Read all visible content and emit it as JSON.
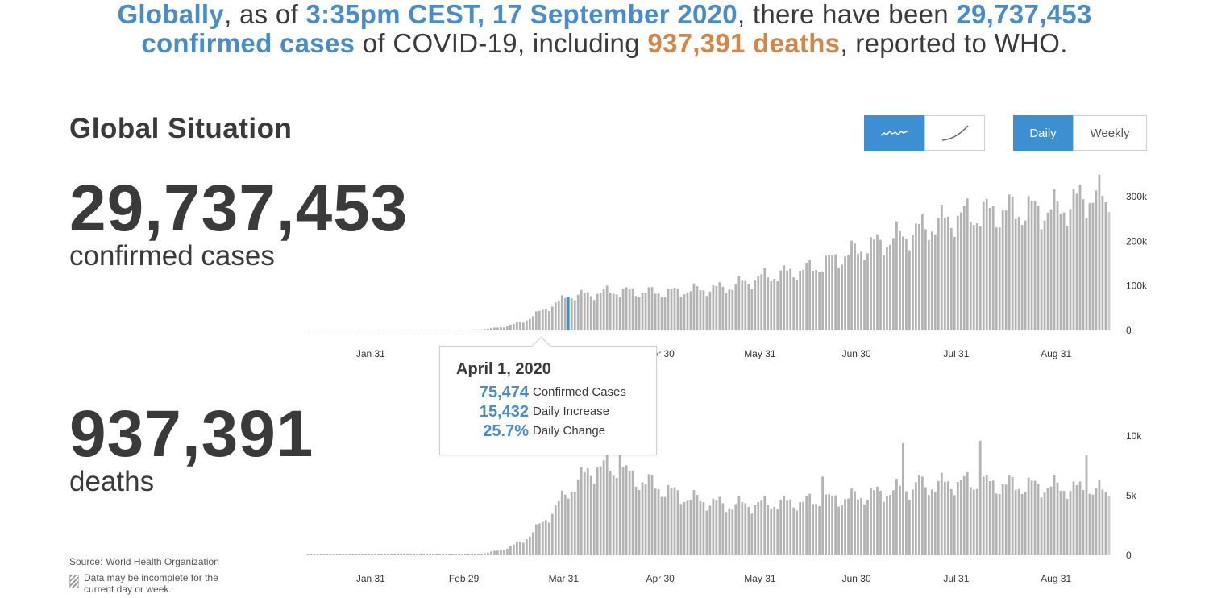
{
  "headline": {
    "globally": "Globally",
    "t1": ", as of ",
    "date": "3:35pm CEST, 17 September 2020",
    "t2": ", there have been ",
    "cases": "29,737,453 confirmed cases",
    "t3": " of COVID-19, including ",
    "deaths": "937,391 deaths",
    "t4": ", reported to WHO."
  },
  "section_title": "Global Situation",
  "controls": {
    "chart_type": {
      "options": [
        "daily-trend-icon",
        "cumulative-curve-icon"
      ],
      "active": "daily-trend-icon"
    },
    "period": {
      "daily": "Daily",
      "weekly": "Weekly",
      "active": "Daily"
    }
  },
  "stats": {
    "cases": {
      "value": "29,737,453",
      "label": "confirmed cases"
    },
    "deaths": {
      "value": "937,391",
      "label": "deaths"
    }
  },
  "tooltip": {
    "date": "April 1, 2020",
    "rows": [
      {
        "value": "75,474",
        "label": "Confirmed Cases"
      },
      {
        "value": "15,432",
        "label": "Daily Increase"
      },
      {
        "value": "25.7%",
        "label": "Daily Change"
      }
    ]
  },
  "source": {
    "label": "Source:",
    "name": "World Health Organization"
  },
  "disclaimer": "Data may be incomplete for the current day or week.",
  "colors": {
    "bar": "#b3b3b3",
    "highlight": "#3d8fd1",
    "accent_blue": "#4a8dc6",
    "accent_orange": "#d2874a"
  },
  "chart_data": [
    {
      "type": "bar",
      "title": "",
      "series": [
        {
          "values": []
        }
      ],
      "x_start": "2020-01-11",
      "x_end": "2020-09-17",
      "x_ticks": [
        "Jan 31",
        "Feb 29",
        "Mar 31",
        "Apr 30",
        "May 31",
        "Jun 30",
        "Jul 31",
        "Aug 31"
      ],
      "y_ticks": [
        "0",
        "100k",
        "200k",
        "300k"
      ],
      "ylim": [
        0,
        300000
      ],
      "highlight": {
        "date": "2020-04-01",
        "value": 75474
      },
      "anchors": [
        [
          "2020-01-11",
          300
        ],
        [
          "2020-01-29",
          2000
        ],
        [
          "2020-02-12",
          1200
        ],
        [
          "2020-02-25",
          800
        ],
        [
          "2020-03-05",
          2500
        ],
        [
          "2020-03-12",
          8000
        ],
        [
          "2020-03-18",
          20000
        ],
        [
          "2020-03-24",
          45000
        ],
        [
          "2020-04-01",
          75474
        ],
        [
          "2020-04-15",
          88000
        ],
        [
          "2020-04-30",
          85000
        ],
        [
          "2020-05-20",
          96000
        ],
        [
          "2020-06-01",
          120000
        ],
        [
          "2020-06-15",
          138000
        ],
        [
          "2020-06-30",
          180000
        ],
        [
          "2020-07-15",
          215000
        ],
        [
          "2020-07-31",
          255000
        ],
        [
          "2020-08-15",
          268000
        ],
        [
          "2020-08-31",
          270000
        ],
        [
          "2020-09-11",
          305000
        ],
        [
          "2020-09-16",
          285000
        ]
      ]
    },
    {
      "type": "bar",
      "title": "",
      "series": [
        {
          "values": []
        }
      ],
      "x_start": "2020-01-11",
      "x_end": "2020-09-17",
      "x_ticks": [
        "Jan 31",
        "Feb 29",
        "Mar 31",
        "Apr 30",
        "May 31",
        "Jun 30",
        "Jul 31",
        "Aug 31"
      ],
      "y_ticks": [
        "0",
        "5k",
        "10k"
      ],
      "ylim": [
        0,
        10000
      ],
      "anchors": [
        [
          "2020-01-11",
          10
        ],
        [
          "2020-02-12",
          120
        ],
        [
          "2020-02-25",
          60
        ],
        [
          "2020-03-05",
          120
        ],
        [
          "2020-03-12",
          500
        ],
        [
          "2020-03-18",
          1200
        ],
        [
          "2020-03-25",
          3000
        ],
        [
          "2020-04-03",
          6000
        ],
        [
          "2020-04-10",
          7500
        ],
        [
          "2020-04-17",
          7000
        ],
        [
          "2020-04-28",
          5800
        ],
        [
          "2020-05-08",
          4800
        ],
        [
          "2020-05-20",
          4200
        ],
        [
          "2020-06-01",
          4300
        ],
        [
          "2020-06-15",
          4500
        ],
        [
          "2020-06-30",
          4900
        ],
        [
          "2020-07-15",
          5600
        ],
        [
          "2020-07-31",
          6100
        ],
        [
          "2020-08-15",
          5900
        ],
        [
          "2020-08-31",
          5700
        ],
        [
          "2020-09-16",
          5300
        ]
      ],
      "spikes": [
        [
          "2020-04-17",
          8500
        ],
        [
          "2020-06-19",
          6600
        ],
        [
          "2020-07-14",
          9400
        ],
        [
          "2020-07-19",
          6700
        ],
        [
          "2020-08-07",
          9600
        ],
        [
          "2020-09-09",
          8400
        ]
      ]
    }
  ]
}
